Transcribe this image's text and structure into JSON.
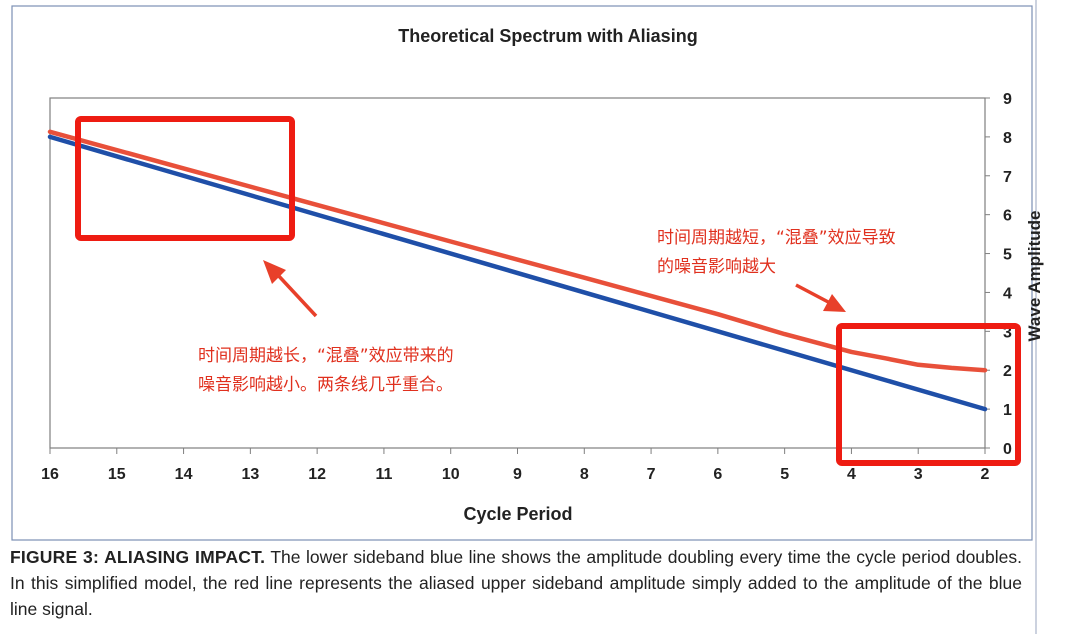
{
  "chart_data": {
    "type": "line",
    "title": "Theoretical Spectrum with Aliasing",
    "xlabel": "Cycle Period",
    "ylabel": "Wave Amplitude",
    "x_reversed": true,
    "xlim": [
      16,
      2
    ],
    "ylim": [
      0,
      9
    ],
    "y_axis_position": "right",
    "grid": false,
    "xticks": [
      "16",
      "15",
      "14",
      "13",
      "12",
      "11",
      "10",
      "9",
      "8",
      "7",
      "6",
      "5",
      "4",
      "3",
      "2"
    ],
    "yticks": [
      "0",
      "1",
      "2",
      "3",
      "4",
      "5",
      "6",
      "7",
      "8",
      "9"
    ],
    "series": [
      {
        "color": "#1f4fa8",
        "x": [
          16,
          2
        ],
        "y": [
          8,
          1
        ]
      },
      {
        "color": "#e8503a",
        "x": [
          16,
          14,
          12,
          10,
          8,
          6,
          5,
          4,
          3.5,
          3,
          2.5,
          2
        ],
        "y": [
          8.13,
          7.19,
          6.25,
          5.31,
          4.38,
          3.44,
          2.93,
          2.47,
          2.31,
          2.14,
          2.06,
          2.0
        ]
      }
    ]
  },
  "annotations": {
    "left_text": "时间周期越长，“混叠”效应带来的\n噪音影响越小。两条线几乎重合。",
    "right_text": "时间周期越短，“混叠”效应导致\n的噪音影响越大",
    "highlight_color": "#ee1c12"
  },
  "caption": {
    "bold": "FIGURE 3: ALIASING IMPACT.",
    "text": " The lower sideband blue line shows the amplitude doubling every time the cycle period doubles. In this simplified model, the red line represents the aliased upper sideband amplitude simply added to the amplitude of the blue line signal."
  }
}
